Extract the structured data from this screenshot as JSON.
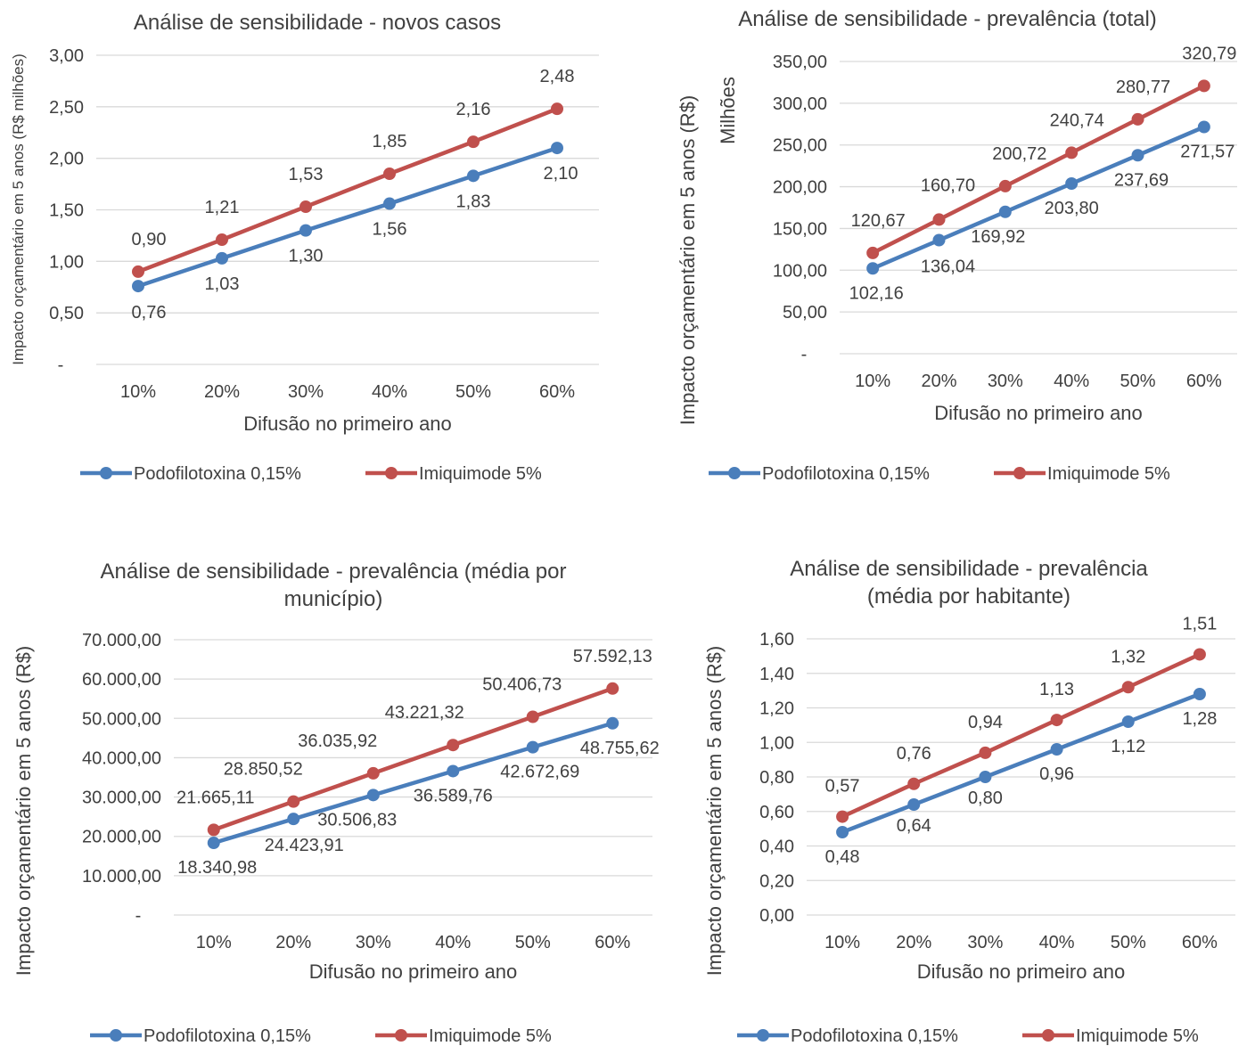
{
  "chart_data": [
    {
      "type": "line",
      "title": "Análise de sensibilidade - novos casos",
      "xlabel": "Difusão no primeiro ano",
      "ylabel": "Impacto orçamentário em 5 anos (R$ milhões)",
      "categories": [
        "10%",
        "20%",
        "30%",
        "40%",
        "50%",
        "60%"
      ],
      "ylim": [
        0,
        3
      ],
      "yticks": [
        "-",
        "0,50",
        "1,00",
        "1,50",
        "2,00",
        "2,50",
        "3,00"
      ],
      "series": [
        {
          "name": "Podofilotoxina 0,15%",
          "color": "#4a7ebb",
          "values": [
            0.76,
            1.03,
            1.3,
            1.56,
            1.83,
            2.1
          ],
          "labels": [
            "0,76",
            "1,03",
            "1,30",
            "1,56",
            "1,83",
            "2,10"
          ]
        },
        {
          "name": "Imiquimode 5%",
          "color": "#c0504d",
          "values": [
            0.9,
            1.21,
            1.53,
            1.85,
            2.16,
            2.48
          ],
          "labels": [
            "0,90",
            "1,21",
            "1,53",
            "1,85",
            "2,16",
            "2,48"
          ]
        }
      ],
      "legend": "bottom"
    },
    {
      "type": "line",
      "title": "Análise de sensibilidade - prevalência (total)",
      "xlabel": "Difusão no primeiro ano",
      "ylabel": "Impacto orçamentário em 5 anos (R$)",
      "unit_label": "Milhões",
      "categories": [
        "10%",
        "20%",
        "30%",
        "40%",
        "50%",
        "60%"
      ],
      "ylim": [
        0,
        350
      ],
      "yticks": [
        "-",
        "50,00",
        "100,00",
        "150,00",
        "200,00",
        "250,00",
        "300,00",
        "350,00"
      ],
      "series": [
        {
          "name": "Podofilotoxina 0,15%",
          "color": "#4a7ebb",
          "values": [
            102.16,
            136.04,
            169.92,
            203.8,
            237.69,
            271.57
          ],
          "labels": [
            "102,16",
            "136,04",
            "169,92",
            "203,80",
            "237,69",
            "271,57"
          ]
        },
        {
          "name": "Imiquimode 5%",
          "color": "#c0504d",
          "values": [
            120.67,
            160.7,
            200.72,
            240.74,
            280.77,
            320.79
          ],
          "labels": [
            "120,67",
            "160,70",
            "200,72",
            "240,74",
            "280,77",
            "320,79"
          ]
        }
      ],
      "legend": "bottom"
    },
    {
      "type": "line",
      "title": "Análise de sensibilidade - prevalência (média por município)",
      "xlabel": "Difusão no primeiro ano",
      "ylabel": "Impacto orçamentário em 5 anos (R$)",
      "categories": [
        "10%",
        "20%",
        "30%",
        "40%",
        "50%",
        "60%"
      ],
      "ylim": [
        0,
        70000
      ],
      "yticks": [
        "-",
        "10.000,00",
        "20.000,00",
        "30.000,00",
        "40.000,00",
        "50.000,00",
        "60.000,00",
        "70.000,00"
      ],
      "series": [
        {
          "name": "Podofilotoxina 0,15%",
          "color": "#4a7ebb",
          "values": [
            18340.98,
            24423.91,
            30506.83,
            36589.76,
            42672.69,
            48755.62
          ],
          "labels": [
            "18.340,98",
            "24.423,91",
            "30.506,83",
            "36.589,76",
            "42.672,69",
            "48.755,62"
          ]
        },
        {
          "name": "Imiquimode 5%",
          "color": "#c0504d",
          "values": [
            21665.11,
            28850.52,
            36035.92,
            43221.32,
            50406.73,
            57592.13
          ],
          "labels": [
            "21.665,11",
            "28.850,52",
            "36.035,92",
            "43.221,32",
            "50.406,73",
            "57.592,13"
          ]
        }
      ],
      "legend": "bottom"
    },
    {
      "type": "line",
      "title": "Análise de sensibilidade - prevalência (média por habitante)",
      "xlabel": "Difusão no primeiro ano",
      "ylabel": "Impacto orçamentário em 5 anos (R$)",
      "categories": [
        "10%",
        "20%",
        "30%",
        "40%",
        "50%",
        "60%"
      ],
      "ylim": [
        0,
        1.6
      ],
      "yticks": [
        "0,00",
        "0,20",
        "0,40",
        "0,60",
        "0,80",
        "1,00",
        "1,20",
        "1,40",
        "1,60"
      ],
      "series": [
        {
          "name": "Podofilotoxina 0,15%",
          "color": "#4a7ebb",
          "values": [
            0.48,
            0.64,
            0.8,
            0.96,
            1.12,
            1.28
          ],
          "labels": [
            "0,48",
            "0,64",
            "0,80",
            "0,96",
            "1,12",
            "1,28"
          ]
        },
        {
          "name": "Imiquimode 5%",
          "color": "#c0504d",
          "values": [
            0.57,
            0.76,
            0.94,
            1.13,
            1.32,
            1.51
          ],
          "labels": [
            "0,57",
            "0,76",
            "0,94",
            "1,13",
            "1,32",
            "1,51"
          ]
        }
      ],
      "legend": "bottom"
    }
  ]
}
